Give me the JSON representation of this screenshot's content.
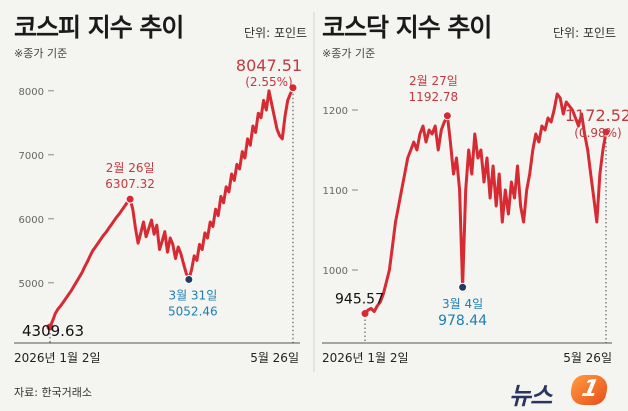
{
  "unit_label": "단위: 포인트",
  "note_label": "※종가 기준",
  "source": "자료: 한국거래소",
  "logo": {
    "text": "뉴스",
    "badge": "1"
  },
  "colors": {
    "line": "#d72a33",
    "dot_low": "#1f3b66",
    "blue_text": "#1e7fb3",
    "red_text": "#c23a3f",
    "axis": "#777777"
  },
  "chart_data": [
    {
      "type": "line",
      "title": "코스피 지수 추이",
      "ylim": [
        4200,
        8200
      ],
      "yticks": [
        5000,
        6000,
        7000,
        8000
      ],
      "x_start_label": "2026년 1월 2일",
      "x_end_label": "5월 26일",
      "series": [
        {
          "values": [
            4309.63,
            4410,
            4520,
            4590,
            4640,
            4700,
            4760,
            4820,
            4880,
            4950,
            5020,
            5090,
            5160,
            5250,
            5330,
            5420,
            5500,
            5560,
            5620,
            5680,
            5740,
            5790,
            5850,
            5910,
            5970,
            6030,
            6080,
            6140,
            6200,
            6260,
            6307.32,
            6150,
            5850,
            5620,
            5780,
            5950,
            5720,
            5850,
            5980,
            5760,
            5900,
            5520,
            5650,
            5800,
            5480,
            5700,
            5600,
            5380,
            5560,
            5460,
            5300,
            5150,
            5052.46,
            5200,
            5420,
            5350,
            5600,
            5520,
            5780,
            5700,
            5950,
            5880,
            6150,
            6050,
            6350,
            6250,
            6500,
            6420,
            6700,
            6600,
            6850,
            6780,
            7050,
            6950,
            7250,
            7150,
            7450,
            7350,
            7650,
            7580,
            7850,
            7700,
            8000,
            7800,
            7600,
            7400,
            7300,
            7250,
            7600,
            7850,
            7950,
            8047.51
          ]
        }
      ],
      "annotations": [
        {
          "label": "4309.63",
          "value": 4309.63
        },
        {
          "label": "2월 26일",
          "value": "6307.32"
        },
        {
          "label": "3월 31일",
          "value": "5052.46"
        },
        {
          "label": "8047.51",
          "change": "(2.55%)"
        }
      ]
    },
    {
      "type": "line",
      "title": "코스닥 지수 추이",
      "ylim": [
        920,
        1240
      ],
      "yticks": [
        1000,
        1100,
        1200
      ],
      "x_start_label": "2026년 1월 2일",
      "x_end_label": "5월 26일",
      "series": [
        {
          "values": [
            945.57,
            950,
            952,
            948,
            955,
            960,
            970,
            985,
            1000,
            1030,
            1060,
            1080,
            1100,
            1120,
            1140,
            1150,
            1160,
            1150,
            1170,
            1180,
            1160,
            1175,
            1170,
            1180,
            1150,
            1175,
            1185,
            1192.78,
            1160,
            1120,
            1140,
            1100,
            978.44,
            1100,
            1150,
            1120,
            1170,
            1140,
            1150,
            1110,
            1140,
            1090,
            1130,
            1080,
            1120,
            1060,
            1100,
            1070,
            1110,
            1090,
            1130,
            1080,
            1060,
            1100,
            1120,
            1150,
            1170,
            1160,
            1180,
            1175,
            1190,
            1185,
            1200,
            1220,
            1215,
            1195,
            1210,
            1205,
            1200,
            1190,
            1180,
            1195,
            1170,
            1150,
            1120,
            1090,
            1060,
            1120,
            1150,
            1172.52
          ]
        }
      ],
      "annotations": [
        {
          "label": "945.57",
          "value": 945.57
        },
        {
          "label": "2월 27일",
          "value": "1192.78"
        },
        {
          "label": "3월 4일",
          "value": "978.44"
        },
        {
          "label": "1172.52",
          "change": "(0.98%)"
        }
      ]
    }
  ]
}
